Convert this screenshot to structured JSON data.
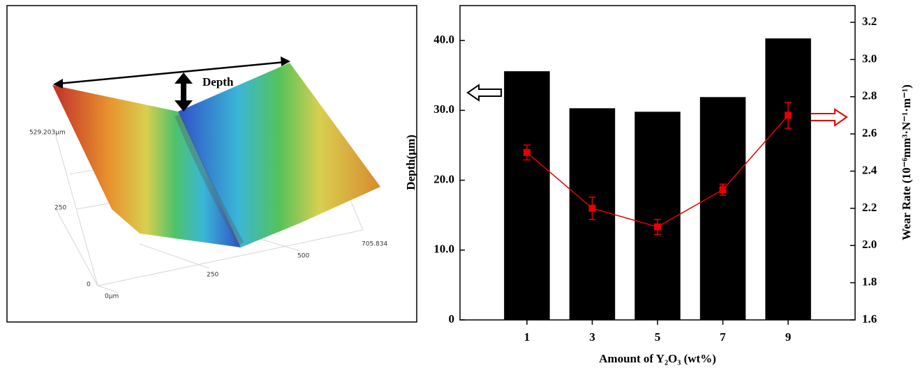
{
  "surface_image": {
    "label": "Depth",
    "tick_labels": [
      "529.203μm",
      "250",
      "0",
      "0μm",
      "250",
      "500",
      "705.834"
    ]
  },
  "chart_data": {
    "type": "bar",
    "x_label": "Amount of Y₂O₃ (wt%)",
    "y_label": "Depth(μm)",
    "y2_label": "Wear Rate (10⁻⁶mm³·N⁻¹·m⁻¹)",
    "x": [
      1,
      3,
      5,
      7,
      9
    ],
    "xlim": [
      -1.05,
      11.05
    ],
    "xticks": [
      1,
      3,
      5,
      7,
      9
    ],
    "ylim": [
      0,
      45
    ],
    "yticks": [
      0,
      {
        "value": 10,
        "label": "10.0"
      },
      {
        "value": 20,
        "label": "20.0"
      },
      {
        "value": 30,
        "label": "30.0"
      },
      {
        "value": 40,
        "label": "40.0"
      }
    ],
    "y2lim": [
      1.6,
      3.29
    ],
    "y2ticks": [
      1.6,
      1.8,
      {
        "value": 2,
        "label": "2.0"
      },
      2.2,
      2.4,
      2.6,
      2.8,
      {
        "value": 3,
        "label": "3.0"
      },
      3.2
    ],
    "series": [
      {
        "color": "#000000",
        "values": [
          35.6,
          30.3,
          29.8,
          31.9,
          40.3
        ]
      },
      {
        "color": "#e60000",
        "axis": "y2",
        "values": [
          2.5,
          2.2,
          2.1,
          2.3,
          2.7
        ],
        "errors": [
          0.04,
          0.06,
          0.04,
          0.03,
          0.07
        ]
      }
    ]
  }
}
